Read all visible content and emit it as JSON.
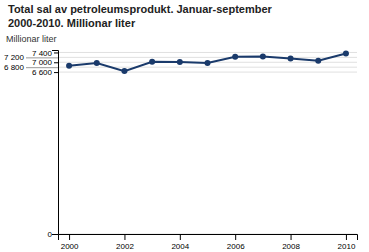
{
  "chart_data": {
    "type": "line",
    "title": "Total sal av petroleumsprodukt. Januar-september",
    "subtitle": "2000-2010. Millionar liter",
    "ylabel": "Millionar liter",
    "x": [
      2000,
      2001,
      2002,
      2003,
      2004,
      2005,
      2006,
      2007,
      2008,
      2009,
      2010
    ],
    "values": [
      6860,
      6970,
      6640,
      7020,
      7010,
      6970,
      7220,
      7240,
      7150,
      7060,
      7360
    ],
    "color": "#1a3a6b",
    "marker": "circle",
    "xlim": [
      1999.6,
      2010.4
    ],
    "ylim": [
      0,
      7500
    ],
    "xticks": [
      2000,
      2002,
      2004,
      2006,
      2008,
      2010
    ],
    "yticks": [
      0,
      {
        "value": 6600,
        "label": "6 600"
      },
      {
        "value": 6800,
        "label": "6 800"
      },
      {
        "value": 7000,
        "label": "7 000"
      },
      {
        "value": 7200,
        "label": "7 200"
      },
      {
        "value": 7400,
        "label": "7 400"
      }
    ],
    "grid": true
  }
}
